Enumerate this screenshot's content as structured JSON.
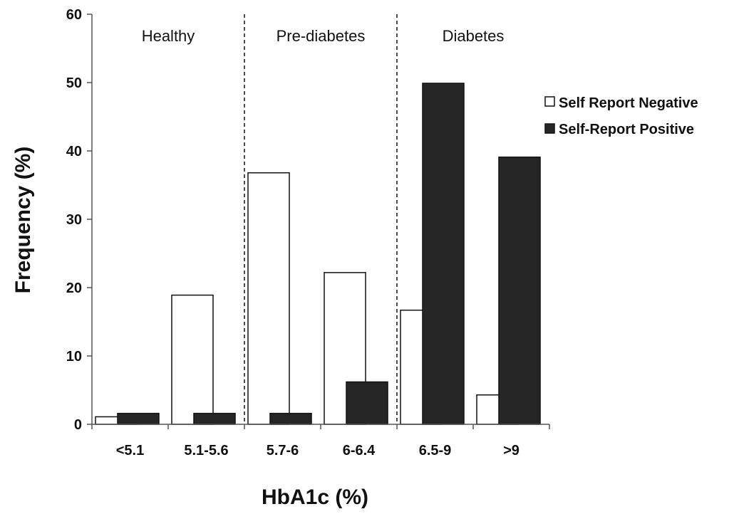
{
  "chart_data": {
    "type": "bar",
    "title": "",
    "xlabel": "HbA1c (%)",
    "ylabel": "Frequency (%)",
    "ylim": [
      0,
      60
    ],
    "yticks": [
      0,
      10,
      20,
      30,
      40,
      50,
      60
    ],
    "categories": [
      "<5.1",
      "5.1-5.6",
      "5.7-6",
      "6-6.4",
      "6.5-9",
      ">9"
    ],
    "series": [
      {
        "name": "Self Report Negative",
        "values": [
          1.1,
          18.9,
          36.8,
          22.2,
          16.7,
          4.3
        ],
        "color": "#ffffff",
        "stroke": "#111111"
      },
      {
        "name": "Self-Report Positive",
        "values": [
          1.6,
          1.6,
          1.6,
          6.2,
          49.9,
          39.1
        ],
        "color": "#262626",
        "stroke": "#111111"
      }
    ],
    "regions": [
      {
        "label": "Healthy",
        "start_index": 0,
        "end_index": 1
      },
      {
        "label": "Pre-diabetes",
        "start_index": 2,
        "end_index": 3
      },
      {
        "label": "Diabetes",
        "start_index": 4,
        "end_index": 5
      }
    ],
    "grid": false,
    "legend_position": "right"
  }
}
